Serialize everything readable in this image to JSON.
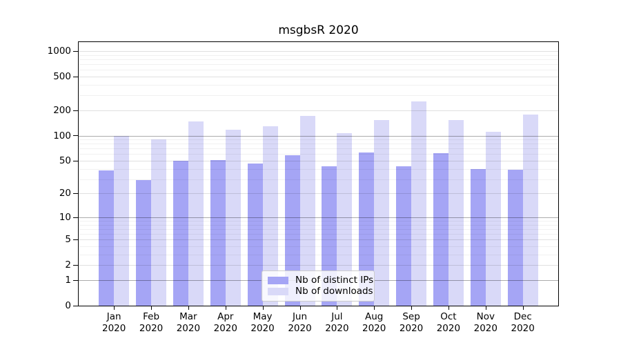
{
  "chart_data": {
    "type": "bar",
    "title": "msgbsR 2020",
    "categories": [
      "Jan",
      "Feb",
      "Mar",
      "Apr",
      "May",
      "Jun",
      "Jul",
      "Aug",
      "Sep",
      "Oct",
      "Nov",
      "Dec"
    ],
    "category_year": "2020",
    "series": [
      {
        "name": "Nb of distinct IPs",
        "color": "#a5a5f5",
        "values": [
          38,
          29,
          50,
          51,
          46,
          58,
          43,
          63,
          43,
          62,
          40,
          39
        ]
      },
      {
        "name": "Nb of downloads",
        "color": "#d9d9f8",
        "values": [
          100,
          91,
          148,
          118,
          130,
          172,
          107,
          152,
          253,
          153,
          112,
          177
        ]
      }
    ],
    "y_axis": {
      "scale": "log10(v+1)",
      "major_ticks": [
        0,
        1,
        2,
        5,
        10,
        20,
        50,
        100,
        200,
        500,
        1000
      ],
      "decade_lines": [
        1,
        10,
        100
      ],
      "minor_lines": [
        3,
        4,
        6,
        7,
        8,
        9,
        30,
        40,
        60,
        70,
        80,
        90,
        300,
        400,
        600,
        700,
        800,
        900
      ],
      "ylim": [
        0,
        1320
      ]
    },
    "legend": {
      "entries": [
        "Nb of distinct IPs",
        "Nb of downloads"
      ],
      "position": "lower center"
    },
    "grid": true
  },
  "colors": {
    "bar_ips": "#a5a5f5",
    "bar_downloads": "#d9d9f8",
    "spine": "#000000",
    "background": "#ffffff",
    "legend_border": "#cccccc"
  }
}
